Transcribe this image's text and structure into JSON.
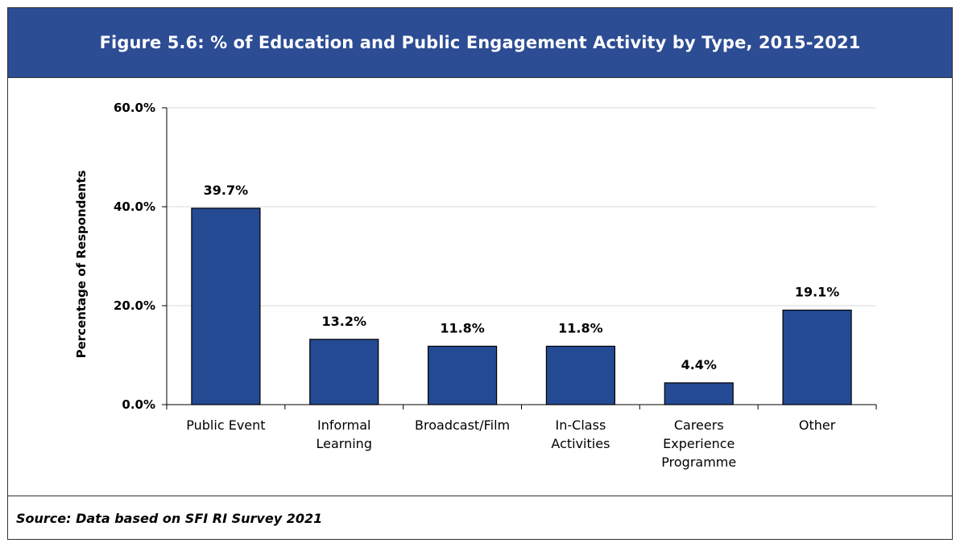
{
  "figure": {
    "title": "Figure 5.6: % of Education and Public Engagement Activity by Type, 2015-2021",
    "source": "Source: Data based on SFI RI Survey 2021",
    "header_color": "#2c4c94"
  },
  "chart_data": {
    "type": "bar",
    "title": "",
    "xlabel": "",
    "ylabel": "Percentage of Respondents",
    "categories": [
      [
        "Public Event"
      ],
      [
        "Informal",
        "Learning"
      ],
      [
        "Broadcast/Film"
      ],
      [
        "In-Class",
        "Activities"
      ],
      [
        "Careers",
        "Experience",
        "Programme"
      ],
      [
        "Other"
      ]
    ],
    "values": [
      39.7,
      13.2,
      11.8,
      11.8,
      4.4,
      19.1
    ],
    "data_labels": [
      "39.7%",
      "13.2%",
      "11.8%",
      "11.8%",
      "4.4%",
      "19.1%"
    ],
    "ylim": [
      0,
      60
    ],
    "yticks": [
      0,
      20,
      40,
      60
    ],
    "ytick_labels": [
      "0.0%",
      "20.0%",
      "40.0%",
      "60.0%"
    ],
    "grid": true,
    "legend": "none",
    "bar_color": "#244a94",
    "bar_edge_color": "#000000",
    "grid_color": "#d9d9d9"
  }
}
